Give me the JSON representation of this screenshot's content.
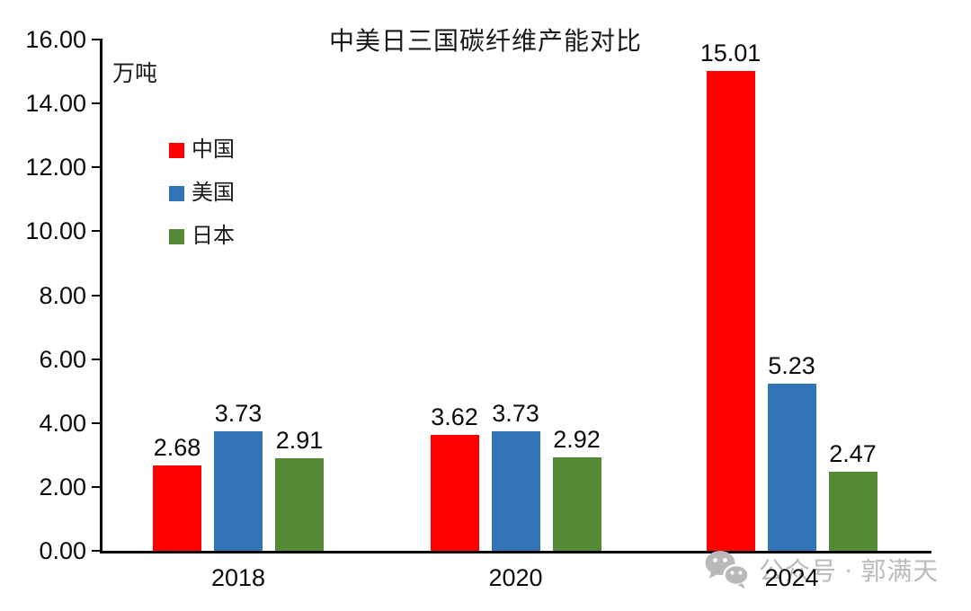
{
  "chart_data": {
    "type": "bar",
    "title": "中美日三国碳纤维产能对比",
    "unit_label": "万吨",
    "categories": [
      "2018",
      "2020",
      "2024"
    ],
    "series": [
      {
        "name": "中国",
        "slug": "china",
        "color": "#FF0000",
        "values": [
          2.68,
          3.62,
          15.01
        ]
      },
      {
        "name": "美国",
        "slug": "usa",
        "color": "#3274B5",
        "values": [
          3.73,
          3.73,
          5.23
        ]
      },
      {
        "name": "日本",
        "slug": "japan",
        "color": "#548A35",
        "values": [
          2.91,
          2.92,
          2.47
        ]
      }
    ],
    "ylim": [
      0,
      16
    ],
    "ytick_step": 2,
    "yticks": [
      "16.00",
      "14.00",
      "12.00",
      "10.00",
      "8.00",
      "6.00",
      "4.00",
      "2.00",
      "0.00"
    ],
    "value_labels_decimals": 2,
    "legend_position": "upper-left-inside",
    "grid": false,
    "axis_color": "#000000",
    "text_color": "#0a0a0a"
  },
  "watermark": {
    "text": "公众号 · 郭满天",
    "icon": "wechat-icon",
    "color": "#BBBBBB"
  }
}
